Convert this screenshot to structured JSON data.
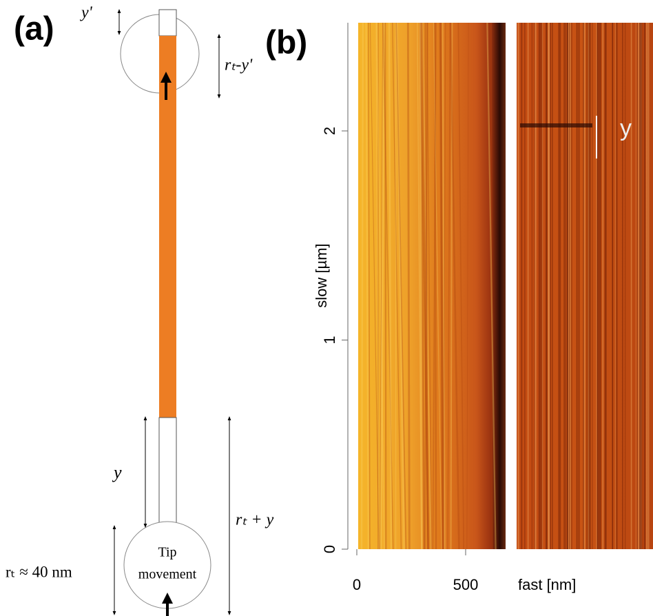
{
  "panel_a": {
    "label": "(a)",
    "dim_top": "y'",
    "dim_top_rest": "rₜ-y'",
    "dim_bottom": "y",
    "dim_bottom_total": "rₜ + y",
    "tip_radius": "rₜ ≈ 40 nm",
    "tip_text": [
      "Tip",
      "movement"
    ]
  },
  "panel_b": {
    "label": "(b)",
    "y_axis_label": "slow [µm]",
    "yticks": [
      0,
      1,
      2
    ],
    "x_axis_label": "fast [nm]",
    "xticks": [
      0,
      500
    ],
    "annotation": "y"
  }
}
